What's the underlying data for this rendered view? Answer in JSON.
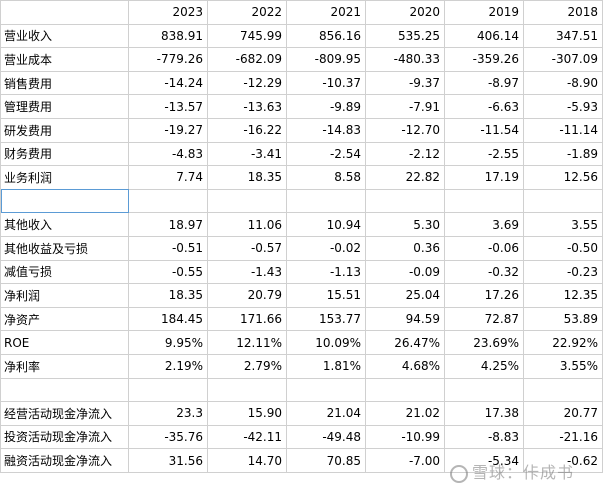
{
  "years": [
    "2023",
    "2022",
    "2021",
    "2020",
    "2019",
    "2018"
  ],
  "rows": [
    {
      "label": "营业收入",
      "values": [
        "838.91",
        "745.99",
        "856.16",
        "535.25",
        "406.14",
        "347.51"
      ]
    },
    {
      "label": "营业成本",
      "values": [
        "-779.26",
        "-682.09",
        "-809.95",
        "-480.33",
        "-359.26",
        "-307.09"
      ]
    },
    {
      "label": "销售费用",
      "values": [
        "-14.24",
        "-12.29",
        "-10.37",
        "-9.37",
        "-8.97",
        "-8.90"
      ]
    },
    {
      "label": "管理费用",
      "values": [
        "-13.57",
        "-13.63",
        "-9.89",
        "-7.91",
        "-6.63",
        "-5.93"
      ]
    },
    {
      "label": "研发费用",
      "values": [
        "-19.27",
        "-16.22",
        "-14.83",
        "-12.70",
        "-11.54",
        "-11.14"
      ]
    },
    {
      "label": "财务费用",
      "values": [
        "-4.83",
        "-3.41",
        "-2.54",
        "-2.12",
        "-2.55",
        "-1.89"
      ]
    },
    {
      "label": "业务利润",
      "values": [
        "7.74",
        "18.35",
        "8.58",
        "22.82",
        "17.19",
        "12.56"
      ]
    },
    {
      "label": "",
      "values": [
        "",
        "",
        "",
        "",
        "",
        ""
      ]
    },
    {
      "label": "其他收入",
      "values": [
        "18.97",
        "11.06",
        "10.94",
        "5.30",
        "3.69",
        "3.55"
      ]
    },
    {
      "label": "其他收益及亏损",
      "values": [
        "-0.51",
        "-0.57",
        "-0.02",
        "0.36",
        "-0.06",
        "-0.50"
      ]
    },
    {
      "label": "减值亏损",
      "values": [
        "-0.55",
        "-1.43",
        "-1.13",
        "-0.09",
        "-0.32",
        "-0.23"
      ]
    },
    {
      "label": "净利润",
      "values": [
        "18.35",
        "20.79",
        "15.51",
        "25.04",
        "17.26",
        "12.35"
      ]
    },
    {
      "label": "净资产",
      "values": [
        "184.45",
        "171.66",
        "153.77",
        "94.59",
        "72.87",
        "53.89"
      ]
    },
    {
      "label": "ROE",
      "values": [
        "9.95%",
        "12.11%",
        "10.09%",
        "26.47%",
        "23.69%",
        "22.92%"
      ]
    },
    {
      "label": "净利率",
      "values": [
        "2.19%",
        "2.79%",
        "1.81%",
        "4.68%",
        "4.25%",
        "3.55%"
      ]
    },
    {
      "label": "",
      "values": [
        "",
        "",
        "",
        "",
        "",
        ""
      ]
    },
    {
      "label": "经营活动现金净流入",
      "values": [
        "23.3",
        "15.90",
        "21.04",
        "21.02",
        "17.38",
        "20.77"
      ]
    },
    {
      "label": "投资活动现金净流入",
      "values": [
        "-35.76",
        "-42.11",
        "-49.48",
        "-10.99",
        "-8.83",
        "-21.16"
      ]
    },
    {
      "label": "融资活动现金净流入",
      "values": [
        "31.56",
        "14.70",
        "70.85",
        "-7.00",
        "-5.34",
        "-0.62"
      ]
    }
  ],
  "watermark": "雪球：佧成书"
}
